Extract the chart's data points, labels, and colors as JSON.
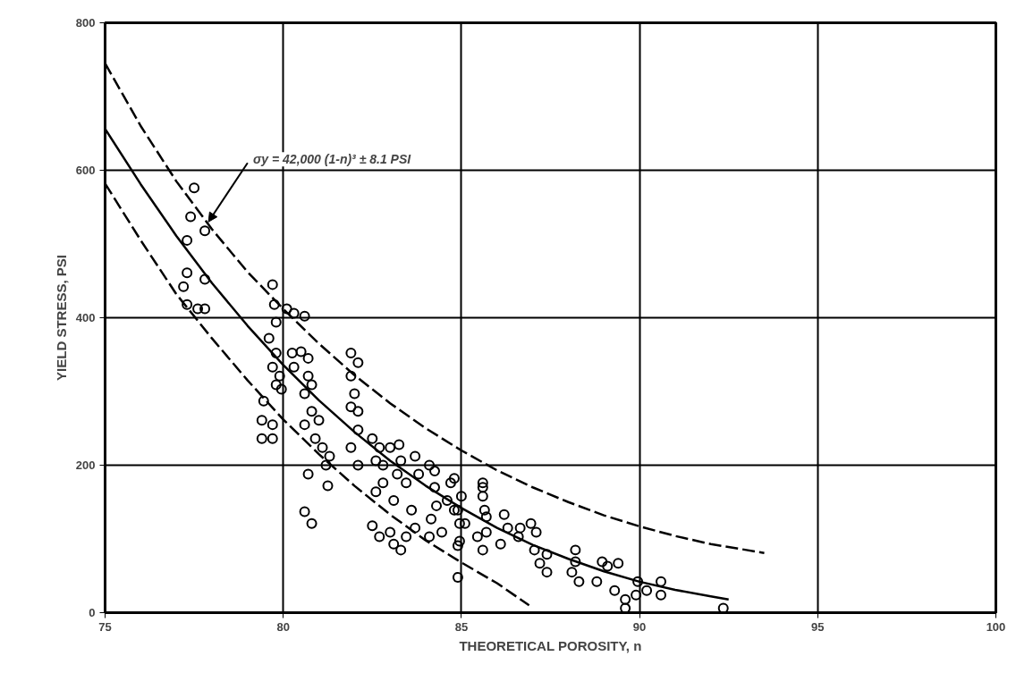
{
  "chart_data": {
    "type": "scatter",
    "xlabel": "THEORETICAL POROSITY, n",
    "ylabel": "YIELD STRESS, PSI",
    "xlim": [
      75,
      100
    ],
    "xticks": [
      75,
      80,
      85,
      90,
      95,
      100
    ],
    "ylim": [
      0,
      800
    ],
    "yticks": [
      0,
      200,
      400,
      600,
      800
    ],
    "grid": true,
    "annotations": [
      {
        "text": "σy = 42,000 (1-n)³ ± 8.1 PSI",
        "x": 77.9,
        "y": 530
      }
    ],
    "series": [
      {
        "color": "#000000",
        "marker": "circle",
        "x": [
          77.5,
          77.4,
          77.3,
          77.8,
          77.3,
          77.8,
          77.2,
          77.3,
          77.8,
          77.6,
          79.7,
          79.75,
          79.8,
          79.6,
          79.8,
          79.7,
          79.8,
          79.95,
          79.9,
          79.45,
          79.4,
          79.4,
          79.7,
          79.7,
          80.3,
          80.6,
          80.1,
          80.25,
          80.5,
          80.3,
          80.7,
          80.7,
          80.6,
          80.8,
          80.8,
          80.6,
          81,
          80.9,
          80.7,
          80.6,
          80.8,
          81.25,
          81.9,
          82.1,
          81.9,
          82,
          81.9,
          82.1,
          82.1,
          81.9,
          82.5,
          82.7,
          82.8,
          82.6,
          81.1,
          81.2,
          81.3,
          82.1,
          82.5,
          82.7,
          83,
          83.1,
          83.3,
          83.45,
          83.7,
          83.6,
          83.1,
          82.8,
          82.6,
          83.2,
          83.3,
          83,
          83.25,
          83.45,
          83.8,
          83.7,
          84.1,
          84.25,
          84.3,
          84.15,
          84.45,
          84.1,
          84.6,
          84.7,
          84.8,
          84.95,
          84.25,
          84.8,
          85,
          84.9,
          85.1,
          84.9,
          84.9,
          84.95,
          85.6,
          85.6,
          85.65,
          85.45,
          85.7,
          85.6,
          85.7,
          85.6,
          86.2,
          86.3,
          86.1,
          86.6,
          86.65,
          87.1,
          87.05,
          87.2,
          87.4,
          87.4,
          86.95,
          88.2,
          88.1,
          88.3,
          88.2,
          88.95,
          89.1,
          89.4,
          88.8,
          89.3,
          89.6,
          89.9,
          89.95,
          90.2,
          90.6,
          90.6,
          89.6,
          92.35
        ],
        "values": [
          576,
          537,
          505,
          518,
          461,
          452,
          442,
          418,
          412,
          412,
          445,
          418,
          394,
          372,
          352,
          333,
          309,
          303,
          321,
          287,
          261,
          236,
          255,
          236,
          406,
          402,
          412,
          352,
          354,
          333,
          345,
          321,
          297,
          309,
          273,
          255,
          261,
          236,
          188,
          137,
          121,
          172,
          352,
          339,
          321,
          297,
          279,
          273,
          248,
          224,
          236,
          224,
          200,
          206,
          224,
          200,
          212,
          200,
          118,
          103,
          109,
          93,
          85,
          103,
          115,
          139,
          152,
          176,
          164,
          188,
          206,
          224,
          228,
          176,
          188,
          212,
          200,
          170,
          145,
          127,
          109,
          103,
          152,
          176,
          139,
          121,
          192,
          182,
          158,
          139,
          121,
          91,
          48,
          97,
          176,
          158,
          139,
          103,
          109,
          85,
          130,
          170,
          133,
          115,
          93,
          103,
          115,
          109,
          85,
          67,
          55,
          79,
          121,
          85,
          55,
          42,
          69,
          69,
          63,
          67,
          42,
          30,
          18,
          24,
          42,
          30,
          42,
          24,
          6,
          6
        ]
      },
      {
        "type": "line",
        "color": "#000000",
        "line_style": "solid",
        "x": [
          75,
          76,
          77,
          78,
          79,
          80,
          81,
          82,
          83,
          84,
          85,
          86,
          87,
          88,
          89,
          90,
          91,
          92,
          92.5
        ],
        "values": [
          656,
          581,
          511,
          447,
          389,
          336,
          288,
          245,
          206,
          172,
          142,
          115,
          92,
          73,
          56,
          42,
          31,
          22,
          18
        ]
      },
      {
        "type": "line",
        "color": "#000000",
        "line_style": "dashed",
        "x": [
          75,
          76,
          77,
          78,
          79,
          80,
          81,
          82,
          83,
          84,
          85,
          86,
          87,
          88,
          89,
          90,
          91,
          92,
          93,
          93.5
        ],
        "values": [
          745,
          660,
          585,
          520,
          462,
          412,
          365,
          322,
          284,
          250,
          220,
          193,
          170,
          150,
          132,
          117,
          104,
          93,
          85,
          81
        ]
      },
      {
        "type": "line",
        "color": "#000000",
        "line_style": "dashed",
        "x": [
          75,
          76,
          77,
          78,
          79,
          80,
          81,
          82,
          83,
          84,
          85,
          86,
          86.9
        ],
        "values": [
          582,
          505,
          432,
          372,
          315,
          262,
          215,
          172,
          133,
          98,
          68,
          40,
          10
        ]
      }
    ]
  }
}
